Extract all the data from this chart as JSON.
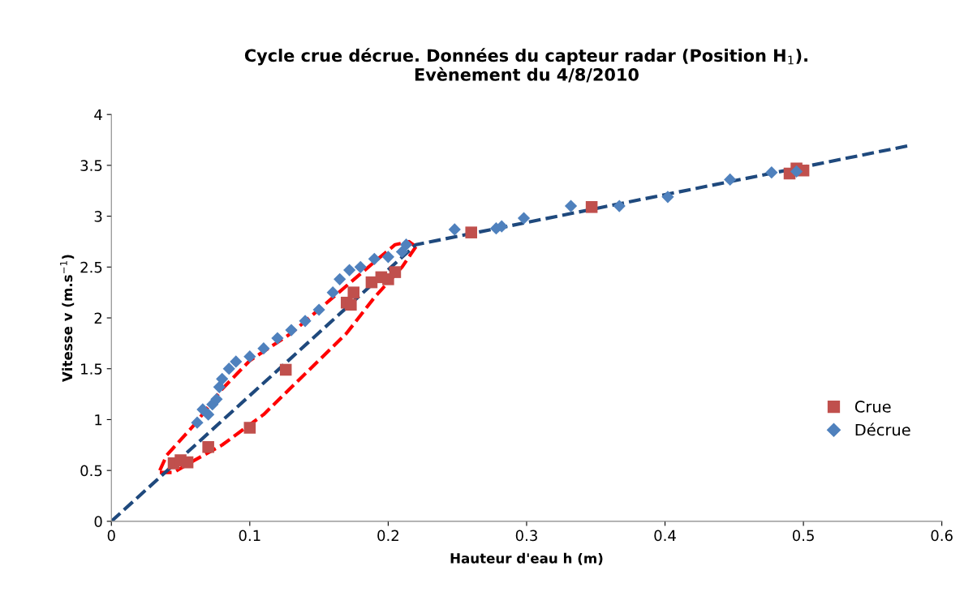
{
  "chart_data": {
    "type": "scatter",
    "title": "Cycle crue décrue. Données du capteur radar (Position H$_{1}$).\nEvènement du 4/8/2010",
    "xlabel": "Hauteur d'eau h (m)",
    "ylabel": "Vitesse v (m.s$^{−1}$)",
    "xlim": [
      0,
      0.6
    ],
    "xticks": [
      0,
      0.1,
      0.2,
      0.3,
      0.4,
      0.5,
      0.6
    ],
    "ylim": [
      0,
      4
    ],
    "yticks": [
      0,
      0.5,
      1,
      1.5,
      2,
      2.5,
      3,
      3.5,
      4
    ],
    "grid": false,
    "legend": "right",
    "series": [
      {
        "type": "line",
        "color": "#ff0000",
        "marker": "none",
        "line_style": "dashed",
        "x": [
          0.035,
          0.04,
          0.06,
          0.08,
          0.1,
          0.13,
          0.16,
          0.19,
          0.205,
          0.215,
          0.22
        ],
        "values": [
          0.5,
          0.65,
          0.95,
          1.3,
          1.58,
          1.85,
          2.2,
          2.55,
          2.72,
          2.75,
          2.7
        ]
      },
      {
        "type": "line",
        "color": "#ff0000",
        "marker": "none",
        "line_style": "dashed",
        "x": [
          0.035,
          0.045,
          0.06,
          0.08,
          0.11,
          0.14,
          0.17,
          0.19,
          0.21,
          0.22
        ],
        "values": [
          0.48,
          0.48,
          0.6,
          0.75,
          1.05,
          1.45,
          1.85,
          2.2,
          2.5,
          2.7
        ]
      },
      {
        "type": "line",
        "color": "#1f497d",
        "marker": "none",
        "line_style": "dashed",
        "x": [
          0,
          0.22,
          0.575
        ],
        "values": [
          0,
          2.72,
          3.69
        ]
      },
      {
        "name": "Crue",
        "color": "#c0504d",
        "marker": "square",
        "x": [
          0.045,
          0.05,
          0.055,
          0.07,
          0.1,
          0.126,
          0.17,
          0.173,
          0.175,
          0.188,
          0.195,
          0.2,
          0.205,
          0.26,
          0.347,
          0.49,
          0.495,
          0.5
        ],
        "values": [
          0.57,
          0.6,
          0.58,
          0.73,
          0.92,
          1.49,
          2.15,
          2.13,
          2.25,
          2.35,
          2.4,
          2.38,
          2.45,
          2.84,
          3.09,
          3.42,
          3.47,
          3.45
        ]
      },
      {
        "name": "Décrue",
        "color": "#4f81bd",
        "marker": "diamond",
        "x": [
          0.062,
          0.066,
          0.07,
          0.073,
          0.076,
          0.078,
          0.08,
          0.085,
          0.09,
          0.1,
          0.11,
          0.12,
          0.13,
          0.14,
          0.15,
          0.16,
          0.165,
          0.172,
          0.18,
          0.19,
          0.2,
          0.21,
          0.213,
          0.248,
          0.278,
          0.282,
          0.298,
          0.332,
          0.367,
          0.402,
          0.447,
          0.477,
          0.495
        ],
        "values": [
          0.97,
          1.1,
          1.05,
          1.15,
          1.2,
          1.32,
          1.4,
          1.5,
          1.57,
          1.62,
          1.7,
          1.8,
          1.88,
          1.97,
          2.08,
          2.25,
          2.38,
          2.47,
          2.5,
          2.58,
          2.6,
          2.65,
          2.72,
          2.87,
          2.88,
          2.9,
          2.98,
          3.1,
          3.1,
          3.19,
          3.36,
          3.43,
          3.44
        ]
      }
    ]
  }
}
